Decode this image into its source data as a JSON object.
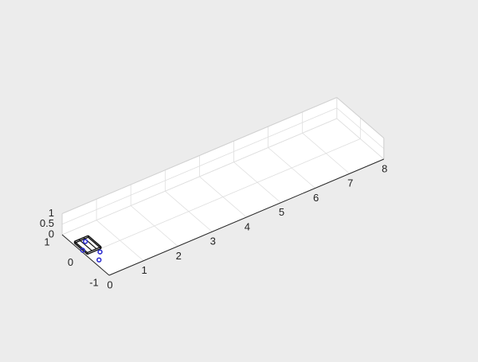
{
  "figure": {
    "background": "#ececec"
  },
  "chart_data": {
    "type": "scatter",
    "title": "",
    "xlabel": "",
    "ylabel": "",
    "zlabel": "",
    "xlim": [
      0,
      8
    ],
    "ylim": [
      -1,
      1
    ],
    "zlim": [
      0,
      1
    ],
    "x_ticks": [
      "0",
      "1",
      "2",
      "3",
      "4",
      "5",
      "6",
      "7",
      "8"
    ],
    "y_ticks": [
      "-1",
      "0",
      "1"
    ],
    "z_ticks": [
      "0",
      "0.5",
      "1"
    ],
    "grid": true,
    "box": true,
    "series": [
      {
        "marker": "o",
        "color": "#2f2fd0",
        "points": [
          {
            "x": 0.15,
            "y": -0.35,
            "z": 0
          },
          {
            "x": 0.35,
            "y": -0.1,
            "z": 0
          },
          {
            "x": 0.05,
            "y": 0.2,
            "z": 0
          },
          {
            "x": 0.3,
            "y": 0.45,
            "z": 0
          }
        ]
      }
    ],
    "shapes": [
      {
        "type": "wireframe-box",
        "color": "#111111",
        "x_range": [
          0.05,
          0.45
        ],
        "y_range": [
          0.0,
          0.55
        ],
        "z_range": [
          0.0,
          0.08
        ]
      }
    ]
  }
}
